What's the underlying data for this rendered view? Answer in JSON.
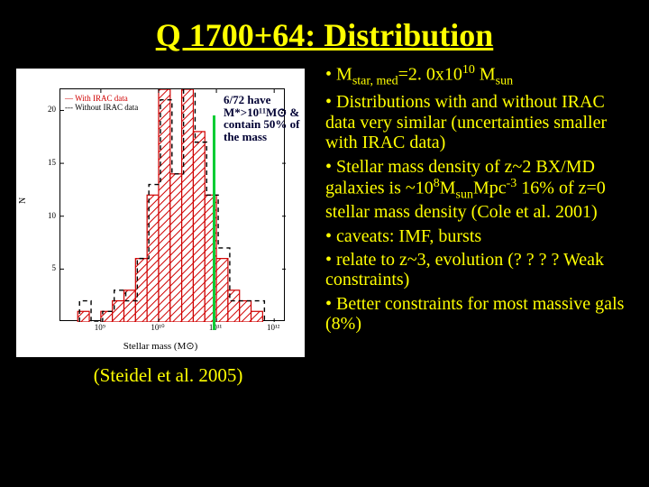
{
  "title": "Q 1700+64: Distribution",
  "chart": {
    "type": "histogram",
    "background_color": "#ffffff",
    "axis_color": "#000000",
    "xlabel": "Stellar mass (M⊙)",
    "ylabel": "N",
    "xlim_log": [
      8.3,
      12.2
    ],
    "ylim": [
      0,
      22
    ],
    "xtick_labels": [
      "10⁹",
      "10¹⁰",
      "10¹¹",
      "10¹²"
    ],
    "xtick_log": [
      9,
      10,
      11,
      12
    ],
    "ytick_labels": [
      "5",
      "10",
      "15",
      "20"
    ],
    "ytick_vals": [
      5,
      10,
      15,
      20
    ],
    "legend_red": "With IRAC data",
    "legend_black": "Without IRAC data",
    "hist_bin_edges_log": [
      8.6,
      8.8,
      9.0,
      9.2,
      9.4,
      9.6,
      9.8,
      10.0,
      10.2,
      10.4,
      10.6,
      10.8,
      11.0,
      11.2,
      11.4,
      11.6,
      11.8
    ],
    "hist_red_counts": [
      1,
      0,
      1,
      2,
      3,
      6,
      12,
      22,
      14,
      22,
      18,
      12,
      6,
      3,
      2,
      1
    ],
    "hist_red_color": "#d00000",
    "hist_red_hatch": true,
    "hist_black_dashed": true,
    "green_vline_log": 10.95,
    "green_color": "#00cc33",
    "annotation": "6/72 have M*>10¹¹M⊙ & contain 50% of the mass",
    "annotation_color": "#000033"
  },
  "caption": "(Steidel et al. 2005)",
  "bullets": {
    "b1_pre": "• M",
    "b1_sub1": "star, med",
    "b1_mid": "=2. 0x10",
    "b1_sup": "10",
    "b1_post": " M",
    "b1_sub2": "sun",
    "b2": "• Distributions with and without IRAC data very similar (uncertainties smaller with IRAC data)",
    "b3_a": "• Stellar mass density of z~2 BX/MD galaxies is ~10",
    "b3_sup1": "8",
    "b3_b": "M",
    "b3_sub1": "sun",
    "b3_c": "Mpc",
    "b3_sup2": "-3",
    "b3_d": " 16% of z=0 stellar mass density (Cole et al. 2001)",
    "b4": "• caveats: IMF, bursts",
    "b5": "• relate to z~3, evolution (? ? ? ? Weak constraints)",
    "b6": "• Better constraints for most massive gals (8%)"
  }
}
